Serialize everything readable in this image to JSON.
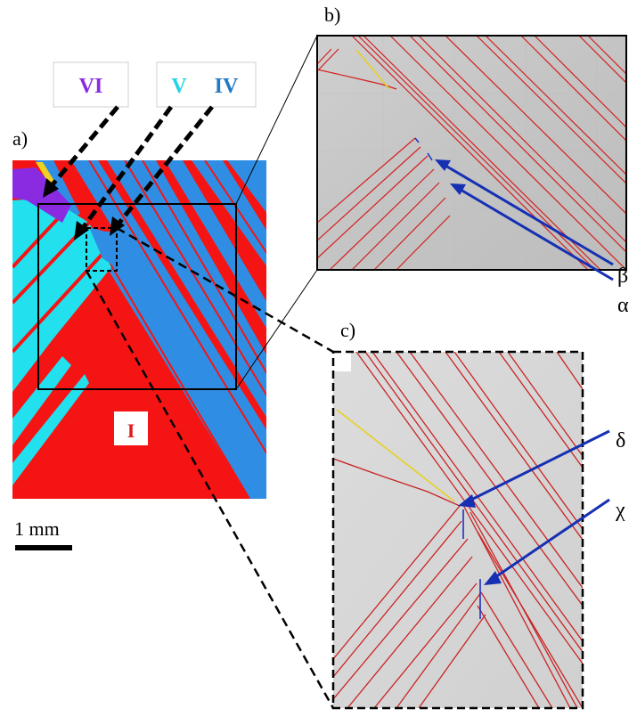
{
  "panels": {
    "a": "a)",
    "b": "b)",
    "c": "c)"
  },
  "variant_labels": {
    "vi": "VI",
    "v": "V",
    "iv": "IV",
    "i": "I"
  },
  "greek_labels": {
    "beta": "β",
    "alpha": "α",
    "delta": "δ",
    "chi": "χ"
  },
  "scale_bar": {
    "label": "1 mm"
  },
  "colors": {
    "variant_I": "#f51414",
    "variant_IV": "#2f8ee3",
    "variant_V": "#22e0ee",
    "variant_VI": "#8a2be2",
    "variant_yellow": "#f0d020",
    "boundary_red": "#d42020",
    "arrow_blue": "#1630b4",
    "micrograph_gray": "#c9c9c9"
  }
}
